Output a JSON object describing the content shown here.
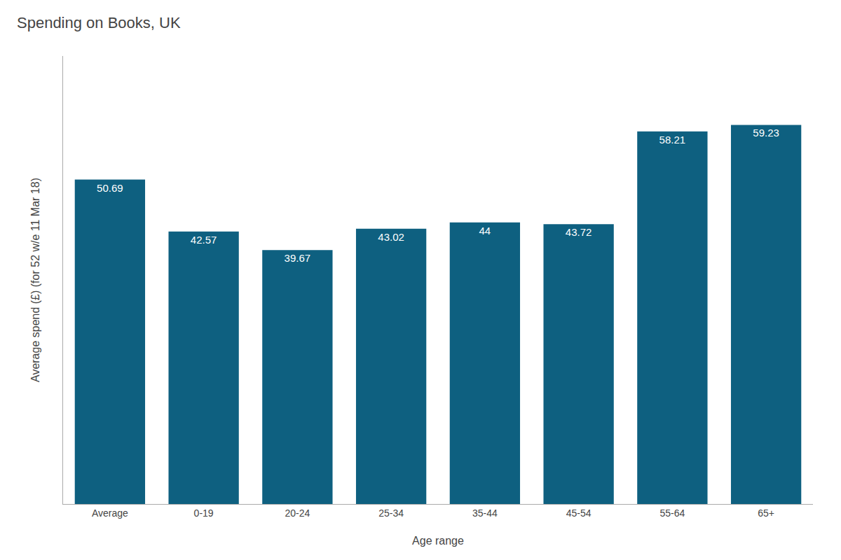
{
  "chart_data": {
    "type": "bar",
    "title": "Spending on Books, UK",
    "xlabel": "Age range",
    "ylabel": "Average spend (£) (for 52 w/e 11 Mar 18)",
    "categories": [
      "Average",
      "0-19",
      "20-24",
      "25-34",
      "35-44",
      "45-54",
      "55-64",
      "65+"
    ],
    "values": [
      50.69,
      42.57,
      39.67,
      43.02,
      44,
      43.72,
      58.21,
      59.23
    ],
    "color": "#0e6080",
    "ylim": [
      0,
      70
    ],
    "yticks": [],
    "grid": false,
    "data_labels": true,
    "tick_labels": "x"
  }
}
